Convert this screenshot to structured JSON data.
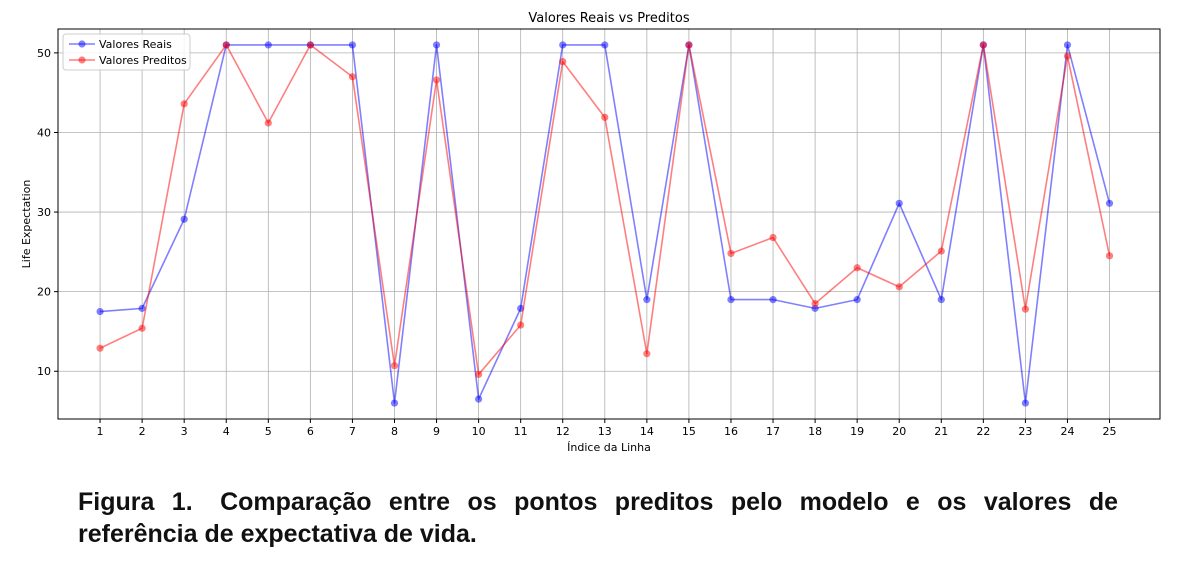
{
  "figure": {
    "caption_label": "Figura 1.",
    "caption_text": "Comparação entre os pontos preditos pelo modelo e os valores de referência de expectativa de vida."
  },
  "chart_data": {
    "type": "line",
    "title": "Valores Reais vs Preditos",
    "xlabel": "Índice da Linha",
    "ylabel": "Life Expectation",
    "x": [
      1,
      2,
      3,
      4,
      5,
      6,
      7,
      8,
      9,
      10,
      11,
      12,
      13,
      14,
      15,
      16,
      17,
      18,
      19,
      20,
      21,
      22,
      23,
      24,
      25
    ],
    "xlim": [
      0,
      26.2
    ],
    "ylim": [
      4,
      53
    ],
    "yticks": [
      10,
      20,
      30,
      40,
      50
    ],
    "grid": true,
    "legend_position": "top-left",
    "series": [
      {
        "name": "Valores Reais",
        "color": "#0000ff",
        "values": [
          17.5,
          17.9,
          29.1,
          51.0,
          51.0,
          51.0,
          51.0,
          6.0,
          51.0,
          6.5,
          17.9,
          51.0,
          51.0,
          19.0,
          51.0,
          19.0,
          19.0,
          17.9,
          19.0,
          31.1,
          19.0,
          51.0,
          6.0,
          51.0,
          31.1
        ]
      },
      {
        "name": "Valores Preditos",
        "color": "#ff0000",
        "values": [
          12.9,
          15.4,
          43.6,
          51.0,
          41.2,
          51.0,
          47.0,
          10.7,
          46.6,
          9.6,
          15.8,
          48.9,
          41.9,
          12.2,
          51.0,
          24.8,
          26.8,
          18.5,
          23.0,
          20.6,
          25.1,
          51.0,
          17.8,
          49.6,
          24.5
        ]
      }
    ]
  }
}
